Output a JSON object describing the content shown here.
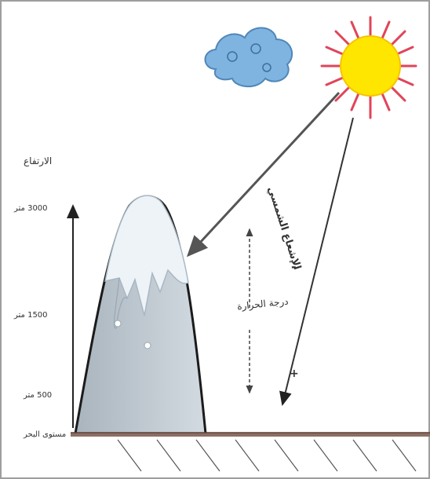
{
  "labels": {
    "altitude_title": "الارتفاع",
    "alt_3000": "3000 متر",
    "alt_1500": "1500 متر",
    "alt_500": "500 متر",
    "sea_level": "مستوى البحر",
    "solar_radiation": "الإشعاع الشمسي",
    "temperature": "درجة الحرارة",
    "minus_sign": "-",
    "plus_sign": "+"
  },
  "colors": {
    "sun": "#ffe600",
    "sun_rays": "#e0455a",
    "cloud": "#6fa8dc",
    "mountain_snow": "#e4ecf2",
    "mountain_rock": "#b9c4cc",
    "ground": "#8d6e63"
  }
}
